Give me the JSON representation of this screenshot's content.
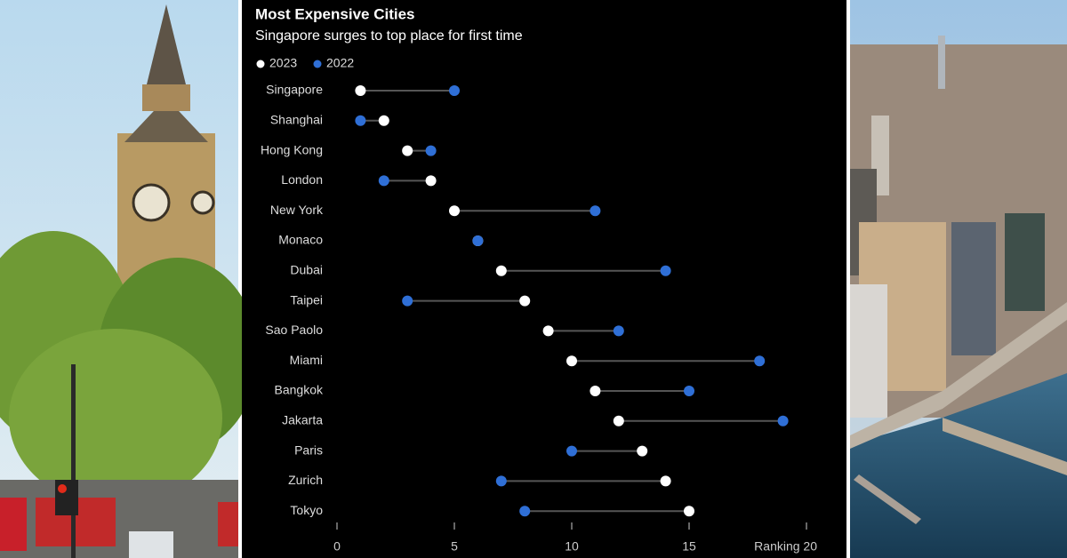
{
  "chart_data": {
    "type": "dumbbell",
    "title": "Most Expensive Cities",
    "subtitle": "Singapore surges to top place for first time",
    "categories": [
      "Singapore",
      "Shanghai",
      "Hong Kong",
      "London",
      "New York",
      "Monaco",
      "Dubai",
      "Taipei",
      "Sao Paolo",
      "Miami",
      "Bangkok",
      "Jakarta",
      "Paris",
      "Zurich",
      "Tokyo"
    ],
    "series": [
      {
        "name": "2023",
        "color": "#ffffff",
        "values": [
          1,
          2,
          3,
          4,
          5,
          6,
          7,
          8,
          9,
          10,
          11,
          12,
          13,
          14,
          15
        ]
      },
      {
        "name": "2022",
        "color": "#2f6fd6",
        "values": [
          5,
          1,
          4,
          2,
          11,
          6,
          14,
          3,
          12,
          18,
          15,
          19,
          10,
          7,
          8
        ]
      }
    ],
    "xlim": [
      0,
      20
    ],
    "xticks": [
      0,
      5,
      10,
      15,
      {
        "value": 20,
        "label": "Ranking 20"
      }
    ]
  }
}
